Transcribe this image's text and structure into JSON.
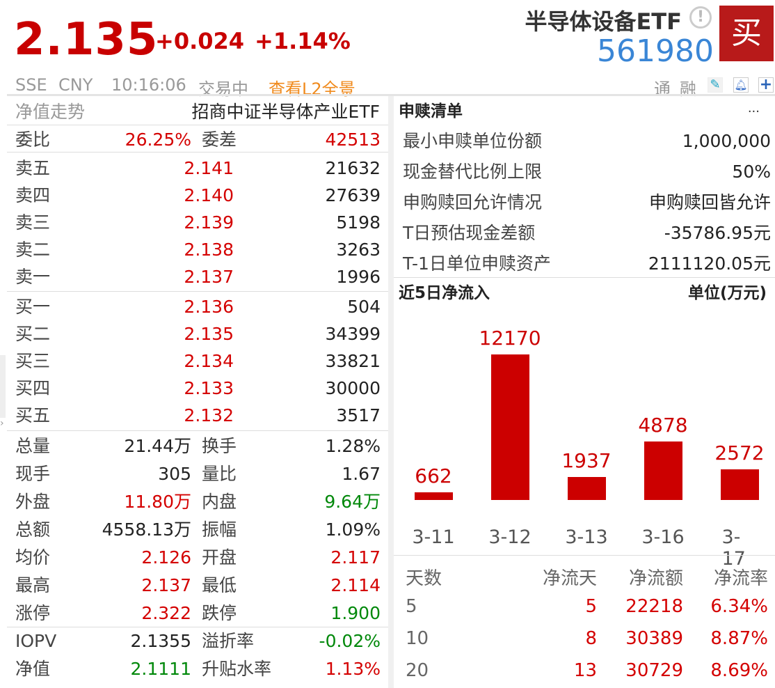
{
  "quote": {
    "price": "2.135",
    "change": "+0.024",
    "change_pct": "+1.14%",
    "exchange": "SSE",
    "currency": "CNY",
    "time": "10:16:06",
    "status": "交易中",
    "l2_link": "查看L2全景"
  },
  "security": {
    "name": "半导体设备ETF",
    "code": "561980",
    "buy_label": "买",
    "tags": [
      "通",
      "融"
    ],
    "icons": [
      "info-icon",
      "edit-icon",
      "bell-icon",
      "plus-icon"
    ]
  },
  "left": {
    "header": {
      "label": "净值走势",
      "fund_name": "招商中证半导体产业ETF"
    },
    "weibi": {
      "label1": "委比",
      "value1": "26.25%",
      "label2": "委差",
      "value2": "42513"
    },
    "asks": [
      {
        "label": "卖五",
        "price": "2.141",
        "vol": "21632"
      },
      {
        "label": "卖四",
        "price": "2.140",
        "vol": "27639"
      },
      {
        "label": "卖三",
        "price": "2.139",
        "vol": "5198"
      },
      {
        "label": "卖二",
        "price": "2.138",
        "vol": "3263"
      },
      {
        "label": "卖一",
        "price": "2.137",
        "vol": "1996"
      }
    ],
    "bids": [
      {
        "label": "买一",
        "price": "2.136",
        "vol": "504"
      },
      {
        "label": "买二",
        "price": "2.135",
        "vol": "34399"
      },
      {
        "label": "买三",
        "price": "2.134",
        "vol": "33821"
      },
      {
        "label": "买四",
        "price": "2.133",
        "vol": "30000"
      },
      {
        "label": "买五",
        "price": "2.132",
        "vol": "3517"
      }
    ],
    "stats": [
      {
        "l1": "总量",
        "v1": "21.44万",
        "c1": "dark",
        "l2": "换手",
        "v2": "1.28%",
        "c2": "dark"
      },
      {
        "l1": "现手",
        "v1": "305",
        "c1": "dark",
        "l2": "量比",
        "v2": "1.67",
        "c2": "dark"
      },
      {
        "l1": "外盘",
        "v1": "11.80万",
        "c1": "red",
        "l2": "内盘",
        "v2": "9.64万",
        "c2": "green"
      },
      {
        "l1": "总额",
        "v1": "4558.13万",
        "c1": "dark",
        "l2": "振幅",
        "v2": "1.09%",
        "c2": "dark"
      },
      {
        "l1": "均价",
        "v1": "2.126",
        "c1": "red",
        "l2": "开盘",
        "v2": "2.117",
        "c2": "red"
      },
      {
        "l1": "最高",
        "v1": "2.137",
        "c1": "red",
        "l2": "最低",
        "v2": "2.114",
        "c2": "red"
      },
      {
        "l1": "涨停",
        "v1": "2.322",
        "c1": "red",
        "l2": "跌停",
        "v2": "1.900",
        "c2": "green"
      }
    ],
    "iopv": [
      {
        "l1": "IOPV",
        "v1": "2.1355",
        "c1": "dark",
        "l2": "溢折率",
        "v2": "-0.02%",
        "c2": "green"
      },
      {
        "l1": "净值",
        "v1": "2.1111",
        "c1": "green",
        "l2": "升贴水率",
        "v2": "1.13%",
        "c2": "red"
      }
    ]
  },
  "redemption": {
    "title": "申赎清单",
    "more": "···",
    "rows": [
      {
        "label": "最小申赎单位份额",
        "value": "1,000,000"
      },
      {
        "label": "现金替代比例上限",
        "value": "50%"
      },
      {
        "label": "申购赎回允许情况",
        "value": "申购赎回皆允许"
      },
      {
        "label": "T日预估现金差额",
        "value": "-35786.95元"
      },
      {
        "label": "T-1日单位申赎资产",
        "value": "2111120.05元"
      }
    ]
  },
  "chart_data": {
    "type": "bar",
    "title": "近5日净流入",
    "unit": "单位(万元)",
    "categories": [
      "3-11",
      "3-12",
      "3-13",
      "3-16",
      "3-17"
    ],
    "values": [
      662,
      12170,
      1937,
      4878,
      2572
    ],
    "color": "#cc0000"
  },
  "flow_table": {
    "headers": [
      "天数",
      "净流天",
      "净流额",
      "净流率"
    ],
    "rows": [
      [
        "5",
        "5",
        "22218",
        "6.34%"
      ],
      [
        "10",
        "8",
        "30389",
        "8.87%"
      ],
      [
        "20",
        "13",
        "30729",
        "8.69%"
      ]
    ]
  }
}
